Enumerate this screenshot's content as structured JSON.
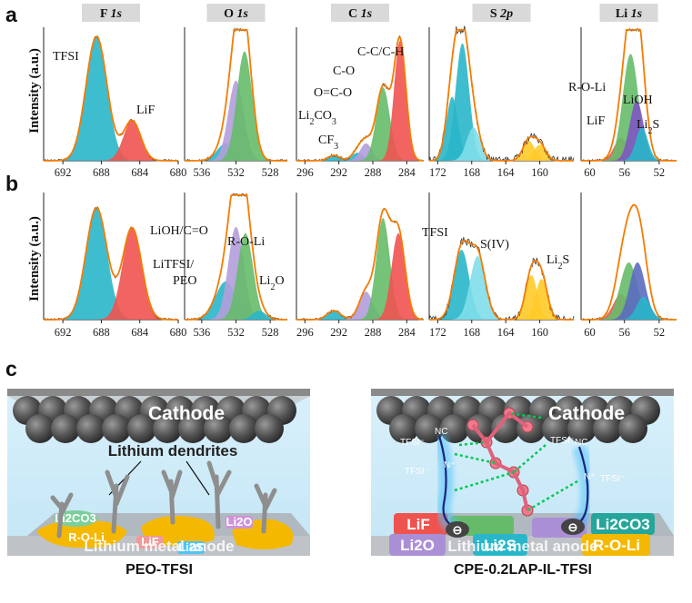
{
  "panel_letters": {
    "a": "a",
    "b": "b",
    "c": "c"
  },
  "y_axis_label": "Intensity (a.u.)",
  "headers": [
    {
      "element": "F",
      "orbital": "1s"
    },
    {
      "element": "O",
      "orbital": "1s"
    },
    {
      "element": "C",
      "orbital": "1s"
    },
    {
      "element": "S",
      "orbital": "2p"
    },
    {
      "element": "Li",
      "orbital": "1s"
    }
  ],
  "chart_data": [
    {
      "type": "area",
      "panel": "a",
      "region": "F 1s",
      "xlim": [
        694,
        680
      ],
      "xticks": [
        692,
        688,
        684,
        680
      ],
      "series": [
        {
          "name": "TFSI",
          "center": 688.5,
          "height": 0.93,
          "width": 1.1,
          "color": "#29b6c9"
        },
        {
          "name": "LiF",
          "center": 684.8,
          "height": 0.3,
          "width": 0.9,
          "color": "#ef5350"
        }
      ],
      "annotations": [
        "TFSI",
        "LiF"
      ]
    },
    {
      "type": "area",
      "panel": "a",
      "region": "O 1s",
      "xlim": [
        538,
        526
      ],
      "xticks": [
        536,
        532,
        528
      ],
      "series": [
        {
          "center": 533.2,
          "height": 0.13,
          "width": 1.0,
          "color": "#29b6c9"
        },
        {
          "center": 532.0,
          "height": 0.6,
          "width": 0.9,
          "color": "#b39ddb"
        },
        {
          "center": 531.0,
          "height": 0.82,
          "width": 0.9,
          "color": "#66bb6a"
        }
      ],
      "annotations": []
    },
    {
      "type": "area",
      "panel": "a",
      "region": "C 1s",
      "xlim": [
        297,
        282
      ],
      "xticks": [
        296,
        292,
        288,
        284
      ],
      "series": [
        {
          "name": "CF3",
          "center": 292.6,
          "height": 0.04,
          "width": 0.7,
          "color": "#29b6c9"
        },
        {
          "name": "Li2CO3",
          "center": 289.8,
          "height": 0.06,
          "width": 0.7,
          "color": "#29b6c9"
        },
        {
          "name": "O=C-O",
          "center": 288.8,
          "height": 0.13,
          "width": 0.7,
          "color": "#b39ddb"
        },
        {
          "name": "C-O",
          "center": 286.8,
          "height": 0.55,
          "width": 0.8,
          "color": "#66bb6a"
        },
        {
          "name": "C-C/C-H",
          "center": 284.8,
          "height": 0.9,
          "width": 0.7,
          "color": "#ef5350"
        }
      ],
      "annotations": [
        "CF3",
        "Li2CO3",
        "O=C-O",
        "C-O",
        "C-C/C-H"
      ]
    },
    {
      "type": "area",
      "panel": "a",
      "region": "S 2p",
      "xlim": [
        173,
        156
      ],
      "xticks": [
        172,
        168,
        164,
        160
      ],
      "series": [
        {
          "center": 170.3,
          "height": 0.48,
          "width": 0.7,
          "color": "#29b6c9"
        },
        {
          "center": 169.1,
          "height": 0.88,
          "width": 0.8,
          "color": "#29b6c9"
        },
        {
          "center": 167.8,
          "height": 0.25,
          "width": 0.8,
          "color": "#80deea"
        },
        {
          "center": 161.3,
          "height": 0.15,
          "width": 0.7,
          "color": "#ffca28"
        },
        {
          "center": 160.0,
          "height": 0.12,
          "width": 0.7,
          "color": "#ffca28"
        }
      ],
      "annotations": []
    },
    {
      "type": "area",
      "panel": "a",
      "region": "Li 1s",
      "xlim": [
        61,
        50
      ],
      "xticks": [
        60,
        56,
        52
      ],
      "series": [
        {
          "name": "LiF",
          "center": 56.4,
          "height": 0.17,
          "width": 0.8,
          "color": "#ef5350"
        },
        {
          "name": "R-O-Li",
          "center": 55.3,
          "height": 0.8,
          "width": 0.9,
          "color": "#66bb6a"
        },
        {
          "name": "LiOH",
          "center": 54.6,
          "height": 0.45,
          "width": 0.8,
          "color": "#7e57c2"
        },
        {
          "name": "Li2S",
          "center": 54.0,
          "height": 0.25,
          "width": 0.7,
          "color": "#29b6c9"
        }
      ],
      "annotations": [
        "R-O-Li",
        "LiOH",
        "LiF",
        "Li2S"
      ]
    },
    {
      "type": "area",
      "panel": "b",
      "region": "F 1s",
      "xlim": [
        694,
        680
      ],
      "xticks": [
        692,
        688,
        684,
        680
      ],
      "series": [
        {
          "center": 688.5,
          "height": 0.88,
          "width": 1.1,
          "color": "#29b6c9"
        },
        {
          "center": 684.8,
          "height": 0.72,
          "width": 1.0,
          "color": "#ef5350"
        }
      ],
      "annotations": []
    },
    {
      "type": "area",
      "panel": "b",
      "region": "O 1s",
      "xlim": [
        538,
        526
      ],
      "xticks": [
        536,
        532,
        528
      ],
      "series": [
        {
          "name": "LiTFSI/PEO",
          "center": 533.2,
          "height": 0.3,
          "width": 1.2,
          "color": "#29b6c9"
        },
        {
          "name": "LiOH/C=O",
          "center": 532.0,
          "height": 0.73,
          "width": 0.9,
          "color": "#b39ddb"
        },
        {
          "name": "R-O-Li",
          "center": 530.9,
          "height": 0.68,
          "width": 0.9,
          "color": "#66bb6a"
        },
        {
          "name": "Li2O",
          "center": 529.3,
          "height": 0.07,
          "width": 0.8,
          "color": "#29b6c9"
        }
      ],
      "annotations": [
        "LiOH/C=O",
        "R-O-Li",
        "LiTFSI/",
        "PEO",
        "Li2O"
      ]
    },
    {
      "type": "area",
      "panel": "b",
      "region": "C 1s",
      "xlim": [
        297,
        282
      ],
      "xticks": [
        296,
        292,
        288,
        284
      ],
      "series": [
        {
          "center": 292.6,
          "height": 0.07,
          "width": 0.8,
          "color": "#29b6c9"
        },
        {
          "center": 288.8,
          "height": 0.22,
          "width": 0.8,
          "color": "#b39ddb"
        },
        {
          "center": 286.8,
          "height": 0.8,
          "width": 0.8,
          "color": "#66bb6a"
        },
        {
          "center": 285.0,
          "height": 0.68,
          "width": 0.8,
          "color": "#ef5350"
        }
      ],
      "annotations": []
    },
    {
      "type": "area",
      "panel": "b",
      "region": "S 2p",
      "xlim": [
        173,
        156
      ],
      "xticks": [
        172,
        168,
        164,
        160
      ],
      "series": [
        {
          "name": "TFSI",
          "center": 169.2,
          "height": 0.55,
          "width": 0.9,
          "color": "#29b6c9"
        },
        {
          "name": "S(IV)",
          "center": 167.3,
          "height": 0.5,
          "width": 0.9,
          "color": "#80deea"
        },
        {
          "name": "Li2S",
          "center": 161.0,
          "height": 0.35,
          "width": 0.7,
          "color": "#ffca28"
        },
        {
          "name": "Li2S",
          "center": 159.8,
          "height": 0.32,
          "width": 0.7,
          "color": "#ffca28"
        }
      ],
      "annotations": [
        "TFSI",
        "S(IV)",
        "Li2S"
      ]
    },
    {
      "type": "area",
      "panel": "b",
      "region": "Li 1s",
      "xlim": [
        61,
        50
      ],
      "xticks": [
        60,
        56,
        52
      ],
      "series": [
        {
          "center": 56.4,
          "height": 0.2,
          "width": 0.9,
          "color": "#ef5350"
        },
        {
          "center": 55.5,
          "height": 0.45,
          "width": 1.0,
          "color": "#66bb6a"
        },
        {
          "center": 54.5,
          "height": 0.45,
          "width": 0.9,
          "color": "#5c6bc0"
        },
        {
          "center": 53.8,
          "height": 0.18,
          "width": 0.8,
          "color": "#29b6c9"
        }
      ],
      "annotations": []
    }
  ],
  "schematic": {
    "left": {
      "cathode": "Cathode",
      "dendrites": "Lithium dendrites",
      "anode": "Lithium metal anode",
      "caption": "PEO-TFSI",
      "li2co3": "Li2CO3",
      "rol": "R-O-Li",
      "lif": "LiF",
      "li2s": "Li2S",
      "li2o": "Li2O"
    },
    "right": {
      "cathode": "Cathode",
      "anode": "Lithium metal anode",
      "caption": "CPE-0.2LAP-IL-TFSI",
      "lif": "LiF",
      "li2o": "Li2O",
      "li2s": "Li2S",
      "li2co3": "Li2CO3",
      "rol": "R-O-Li",
      "tfsi": "TFSI⁻",
      "minus": "⊖",
      "nc": "NC",
      "nplus": "N⁺"
    }
  }
}
